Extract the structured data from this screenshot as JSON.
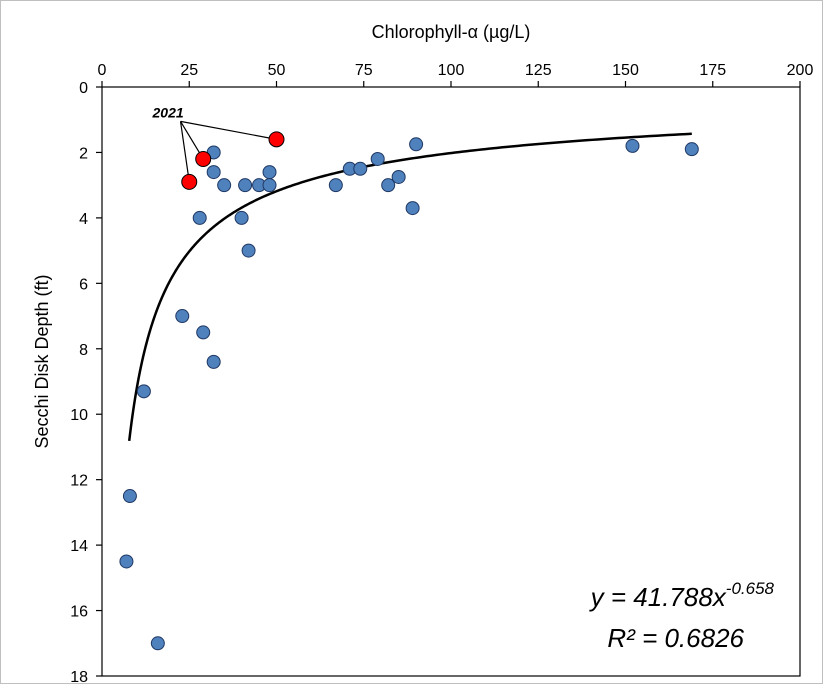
{
  "chart_data": {
    "type": "scatter",
    "title": "",
    "xlabel": "Chlorophyll-α (µg/L)",
    "ylabel": "Secchi Disk Depth (ft)",
    "x_axis_position": "top",
    "y_axis_inverted": true,
    "xlim": [
      0,
      200
    ],
    "ylim": [
      0,
      18
    ],
    "x_ticks": [
      0,
      25,
      50,
      75,
      100,
      125,
      150,
      175,
      200
    ],
    "y_ticks": [
      0,
      2,
      4,
      6,
      8,
      10,
      12,
      14,
      16,
      18
    ],
    "grid": false,
    "series": [
      {
        "color": "#4f81bd",
        "points": [
          {
            "x": 32,
            "y": 2.0
          },
          {
            "x": 32,
            "y": 2.6
          },
          {
            "x": 35,
            "y": 3.0
          },
          {
            "x": 28,
            "y": 4.0
          },
          {
            "x": 41,
            "y": 3.0
          },
          {
            "x": 45,
            "y": 3.0
          },
          {
            "x": 48,
            "y": 2.6
          },
          {
            "x": 48,
            "y": 3.0
          },
          {
            "x": 40,
            "y": 4.0
          },
          {
            "x": 42,
            "y": 5.0
          },
          {
            "x": 67,
            "y": 3.0
          },
          {
            "x": 71,
            "y": 2.5
          },
          {
            "x": 74,
            "y": 2.5
          },
          {
            "x": 79,
            "y": 2.2
          },
          {
            "x": 82,
            "y": 3.0
          },
          {
            "x": 85,
            "y": 2.75
          },
          {
            "x": 89,
            "y": 3.7
          },
          {
            "x": 90,
            "y": 1.75
          },
          {
            "x": 152,
            "y": 1.8
          },
          {
            "x": 169,
            "y": 1.9
          },
          {
            "x": 23,
            "y": 7.0
          },
          {
            "x": 29,
            "y": 7.5
          },
          {
            "x": 32,
            "y": 8.4
          },
          {
            "x": 12,
            "y": 9.3
          },
          {
            "x": 8,
            "y": 12.5
          },
          {
            "x": 7,
            "y": 14.5
          },
          {
            "x": 16,
            "y": 17.0
          }
        ]
      },
      {
        "color": "#ff0000",
        "points": [
          {
            "x": 50,
            "y": 1.6
          },
          {
            "x": 29,
            "y": 2.2
          },
          {
            "x": 25,
            "y": 2.9
          }
        ]
      }
    ],
    "trendline": {
      "type": "power",
      "a": 41.788,
      "b": -0.658,
      "x_range": [
        7.8,
        169
      ]
    },
    "annotations": {
      "year_label": "2021",
      "equation": {
        "prefix": "y = 41.788x",
        "exponent": "-0.658",
        "r_squared": "R² = 0.6826"
      }
    },
    "colors": {
      "axis": "#000000",
      "trendline": "#000000",
      "marker_outline": "#1f3864"
    }
  }
}
